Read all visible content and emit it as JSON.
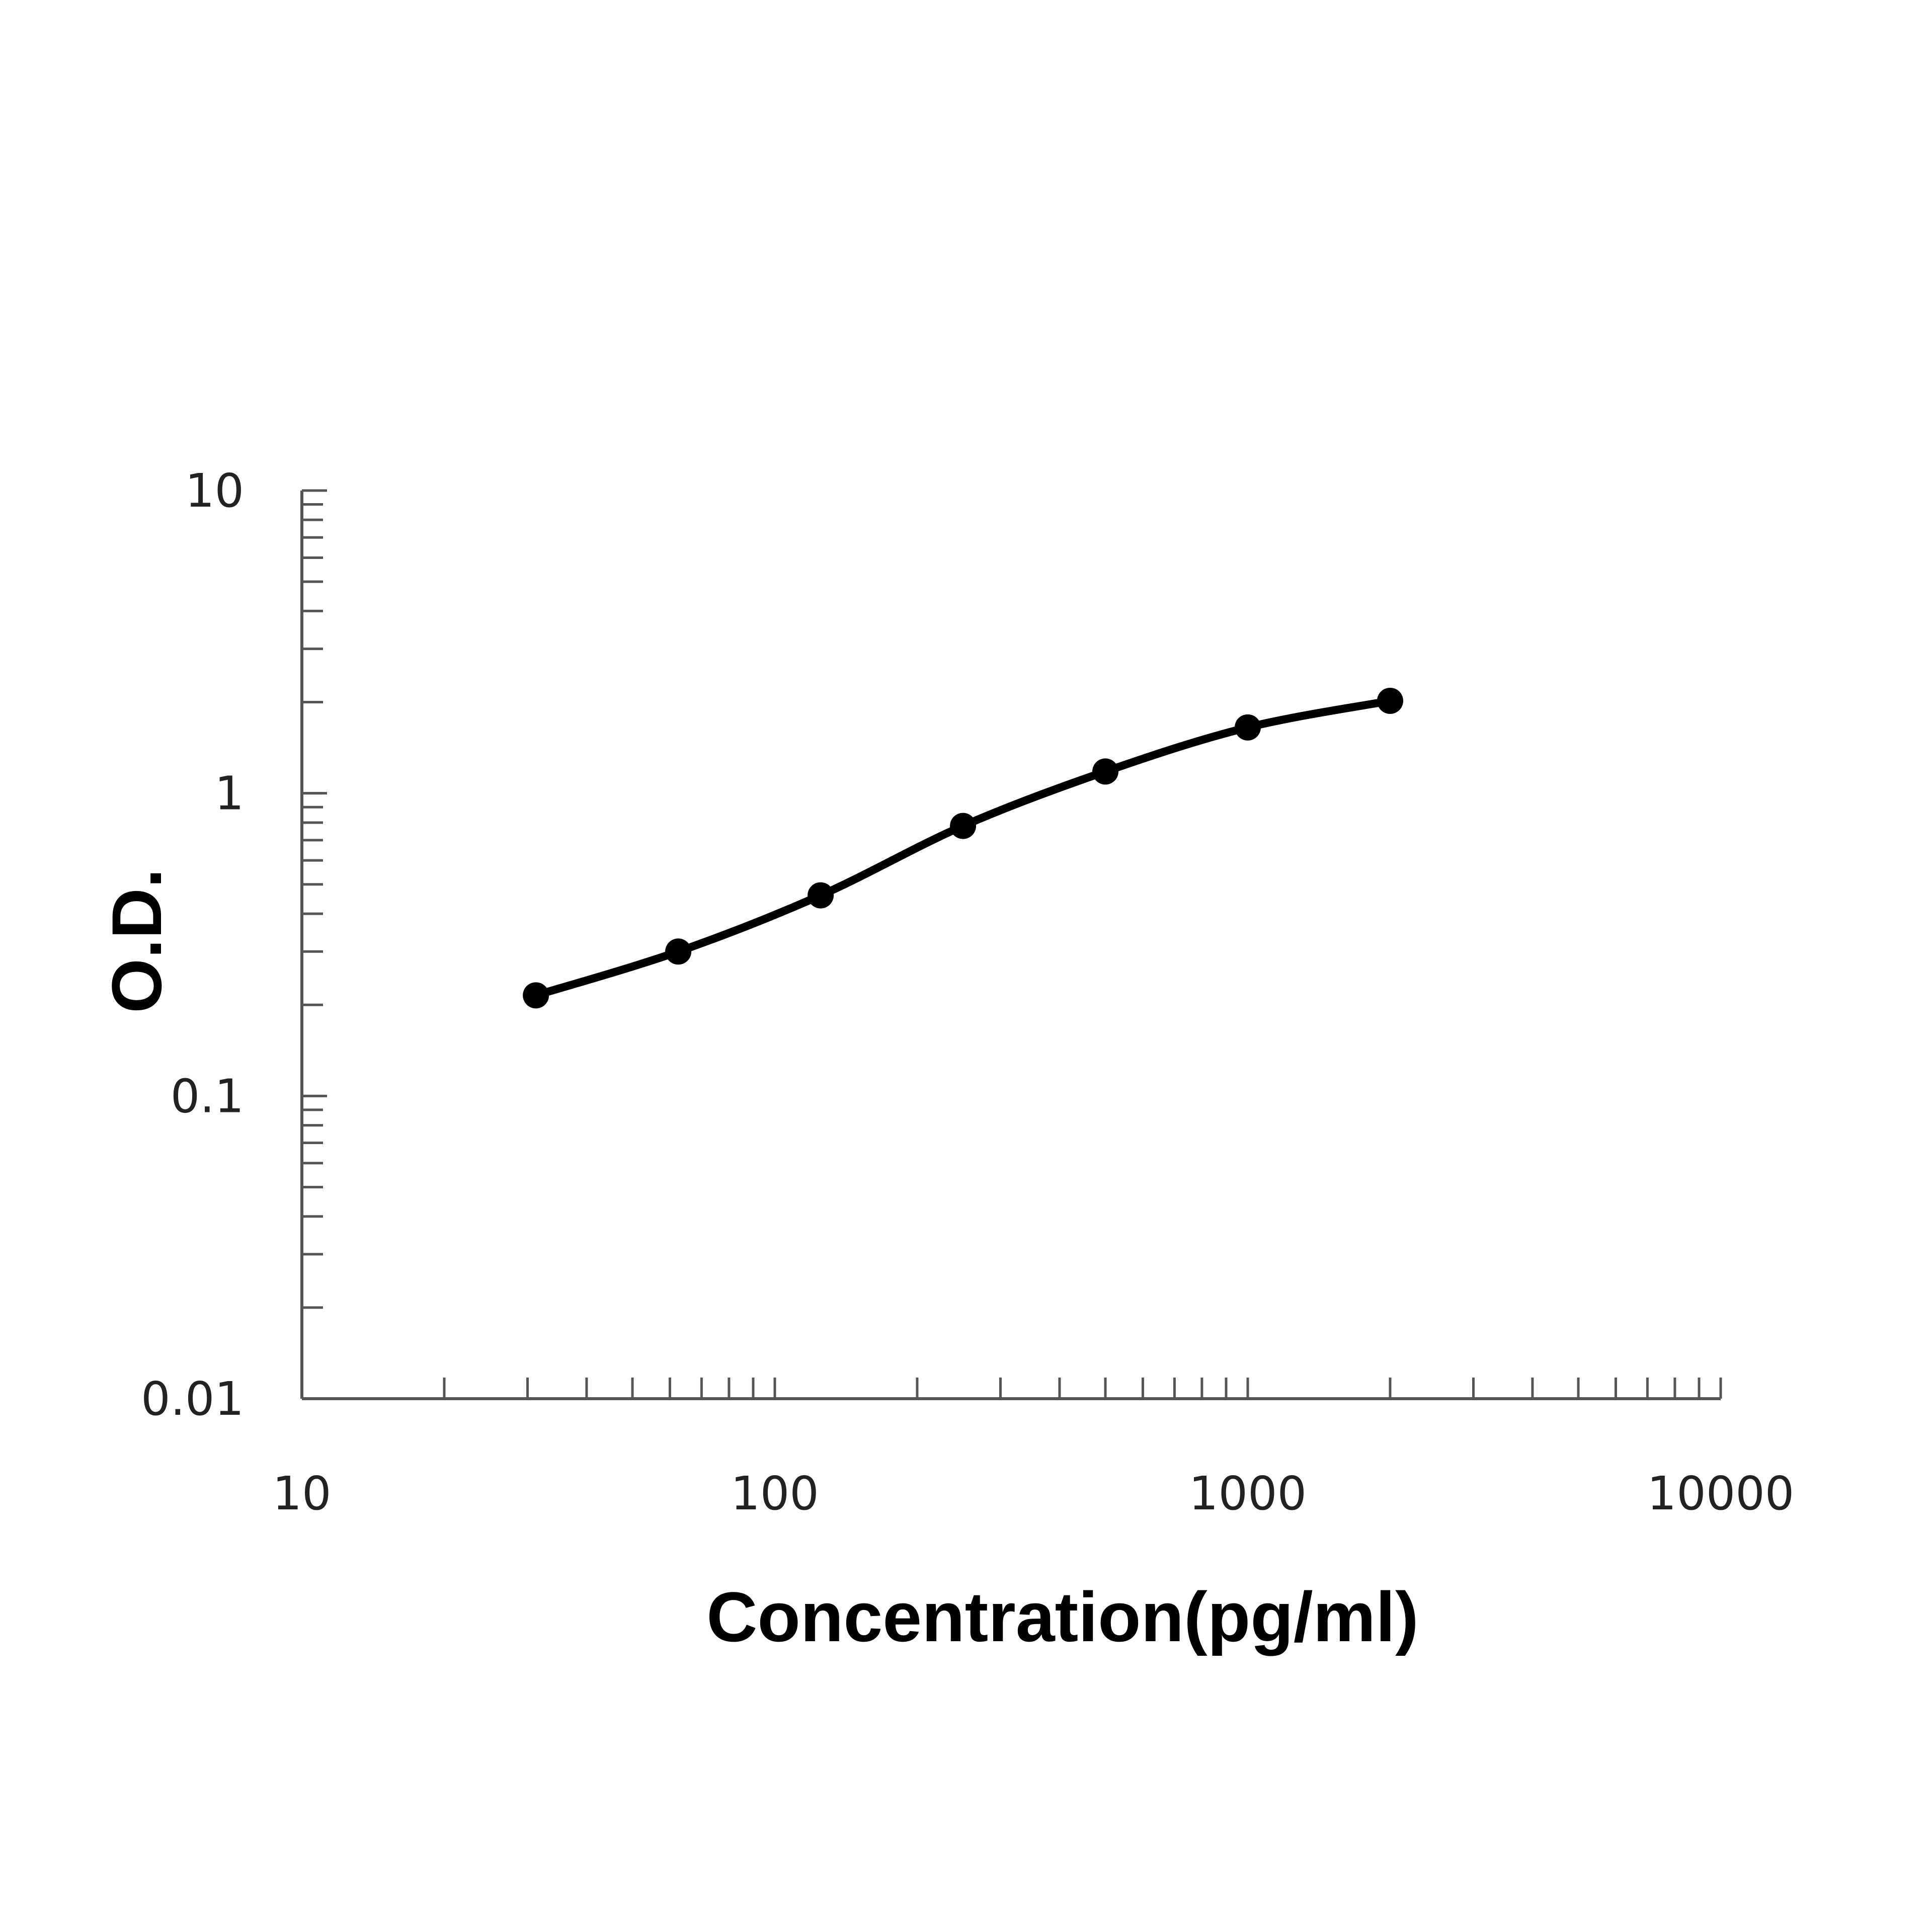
{
  "chart_data": {
    "type": "line",
    "title": "",
    "xlabel": "Concentration(pg/ml)",
    "ylabel": "O.D.",
    "x_scale": "log",
    "y_scale": "log",
    "xlim": [
      10,
      10000
    ],
    "ylim": [
      0.01,
      10
    ],
    "x_ticks": [
      {
        "value": 10,
        "label": "10"
      },
      {
        "value": 100,
        "label": "100"
      },
      {
        "value": 1000,
        "label": "1000"
      },
      {
        "value": 10000,
        "label": "10000"
      }
    ],
    "y_ticks": [
      {
        "value": 0.01,
        "label": "0.01"
      },
      {
        "value": 0.1,
        "label": "0.1"
      },
      {
        "value": 1,
        "label": "1"
      },
      {
        "value": 10,
        "label": "10"
      }
    ],
    "grid": false,
    "legend": "none",
    "markers": true,
    "colors": {
      "line": "#000000",
      "axis": "#555555"
    },
    "series": [
      {
        "x": [
          31.25,
          62.5,
          125,
          250,
          500,
          1000,
          2000
        ],
        "y": [
          0.215,
          0.3,
          0.46,
          0.78,
          1.18,
          1.65,
          2.02
        ]
      }
    ]
  }
}
